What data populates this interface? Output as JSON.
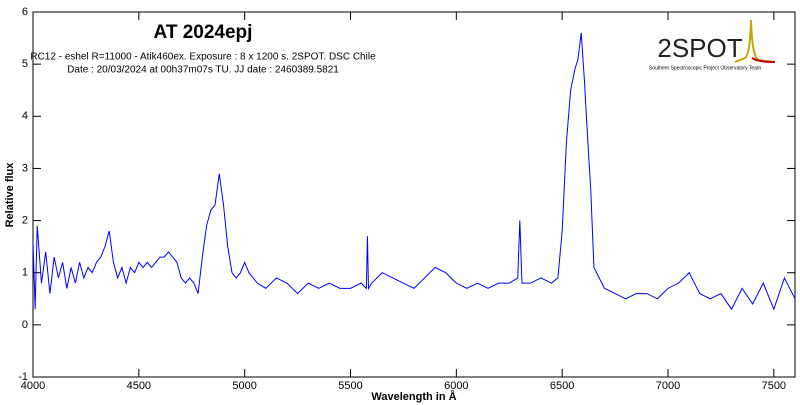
{
  "chart_data": {
    "type": "line",
    "title": "AT 2024epj",
    "subtitle": [
      "RC12 - eshel R=11000 - Atik460ex. Exposure : 8 x 1200 s. 2SPOT. DSC Chile",
      "Date : 20/03/2024 at 00h37m07s TU. JJ date : 2460389.5821"
    ],
    "logo": {
      "name": "2SPOT",
      "caption": "Southern Spectroscopic Project Observatory Team"
    },
    "x_label": "Wavelength in Å",
    "y_label": "Relative flux",
    "xlim": [
      4000,
      7600
    ],
    "ylim": [
      -1,
      6
    ],
    "xticks": [
      4000,
      4500,
      5000,
      5500,
      6000,
      6500,
      7000,
      7500
    ],
    "yticks": [
      -1,
      0,
      1,
      2,
      3,
      4,
      5,
      6
    ],
    "x": [
      4000,
      4010,
      4020,
      4040,
      4060,
      4080,
      4100,
      4120,
      4140,
      4160,
      4180,
      4200,
      4220,
      4240,
      4260,
      4280,
      4300,
      4320,
      4340,
      4360,
      4380,
      4400,
      4420,
      4440,
      4460,
      4480,
      4500,
      4520,
      4540,
      4560,
      4580,
      4600,
      4620,
      4640,
      4660,
      4680,
      4700,
      4720,
      4740,
      4760,
      4780,
      4800,
      4820,
      4840,
      4860,
      4880,
      4900,
      4920,
      4940,
      4960,
      4980,
      5000,
      5020,
      5040,
      5060,
      5100,
      5150,
      5200,
      5250,
      5300,
      5350,
      5400,
      5450,
      5500,
      5550,
      5575,
      5580,
      5585,
      5600,
      5650,
      5700,
      5750,
      5800,
      5850,
      5900,
      5950,
      6000,
      6050,
      6100,
      6150,
      6200,
      6250,
      6290,
      6300,
      6310,
      6350,
      6400,
      6450,
      6480,
      6500,
      6520,
      6540,
      6560,
      6575,
      6590,
      6605,
      6620,
      6635,
      6650,
      6700,
      6750,
      6800,
      6850,
      6900,
      6950,
      7000,
      7050,
      7100,
      7150,
      7200,
      7250,
      7300,
      7350,
      7400,
      7450,
      7500,
      7550,
      7600
    ],
    "series": [
      {
        "name": "AT 2024epj",
        "color": "#0000ff",
        "values": [
          1.6,
          0.3,
          1.9,
          0.8,
          1.4,
          0.6,
          1.3,
          0.9,
          1.2,
          0.7,
          1.1,
          0.8,
          1.2,
          0.9,
          1.1,
          1.0,
          1.2,
          1.3,
          1.5,
          1.8,
          1.2,
          0.9,
          1.1,
          0.8,
          1.1,
          1.0,
          1.2,
          1.1,
          1.2,
          1.1,
          1.2,
          1.3,
          1.3,
          1.4,
          1.3,
          1.2,
          0.9,
          0.8,
          0.9,
          0.8,
          0.6,
          1.3,
          1.9,
          2.2,
          2.3,
          2.9,
          2.3,
          1.5,
          1.0,
          0.9,
          1.0,
          1.2,
          1.0,
          0.9,
          0.8,
          0.7,
          0.9,
          0.8,
          0.6,
          0.8,
          0.7,
          0.8,
          0.7,
          0.7,
          0.8,
          0.7,
          1.7,
          0.7,
          0.8,
          1.0,
          0.9,
          0.8,
          0.7,
          0.9,
          1.1,
          1.0,
          0.8,
          0.7,
          0.8,
          0.7,
          0.8,
          0.8,
          0.9,
          2.0,
          0.8,
          0.8,
          0.9,
          0.8,
          0.9,
          1.8,
          3.5,
          4.5,
          4.9,
          5.1,
          5.6,
          4.7,
          3.6,
          2.6,
          1.1,
          0.7,
          0.6,
          0.5,
          0.6,
          0.6,
          0.5,
          0.7,
          0.8,
          1.0,
          0.6,
          0.5,
          0.6,
          0.3,
          0.7,
          0.4,
          0.8,
          0.3,
          0.9,
          0.5
        ]
      }
    ]
  }
}
